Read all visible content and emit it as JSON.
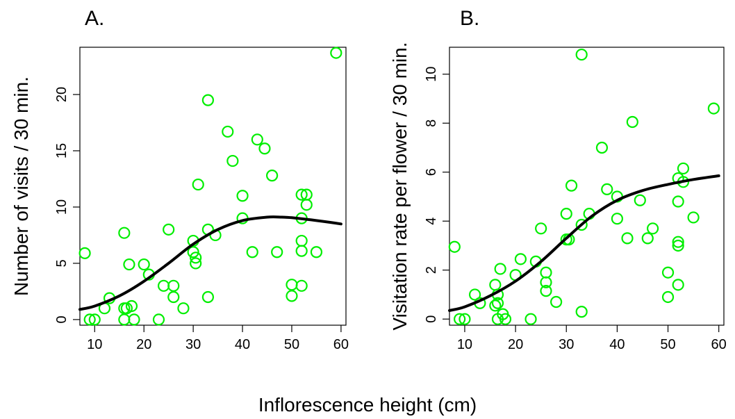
{
  "figure": {
    "shared_xlabel": "Inflorescence height (cm)"
  },
  "chart_data": [
    {
      "type": "scatter",
      "panel_label": "A.",
      "title": "",
      "xlabel": "",
      "ylabel": "Number of visits / 30 min.",
      "xlim": [
        7,
        61
      ],
      "ylim": [
        -0.5,
        24.2
      ],
      "xticks": [
        10,
        20,
        30,
        40,
        50,
        60
      ],
      "yticks": [
        0,
        5,
        10,
        15,
        20
      ],
      "point_color": "#00ee00",
      "curve_color": "#000000",
      "points": [
        [
          8,
          5.9
        ],
        [
          9,
          0
        ],
        [
          10,
          0
        ],
        [
          12,
          1
        ],
        [
          13,
          1.9
        ],
        [
          16,
          7.7
        ],
        [
          16,
          1
        ],
        [
          16.5,
          1
        ],
        [
          16,
          0
        ],
        [
          17,
          4.9
        ],
        [
          17.5,
          1.2
        ],
        [
          18,
          0
        ],
        [
          20,
          4.9
        ],
        [
          21,
          4
        ],
        [
          23,
          0
        ],
        [
          24,
          3
        ],
        [
          25,
          8
        ],
        [
          26,
          3
        ],
        [
          26,
          2
        ],
        [
          28,
          1
        ],
        [
          30,
          7
        ],
        [
          30,
          6
        ],
        [
          30.5,
          5.5
        ],
        [
          30.5,
          5
        ],
        [
          31,
          12
        ],
        [
          33,
          19.5
        ],
        [
          33,
          8
        ],
        [
          33,
          2
        ],
        [
          34.5,
          7.5
        ],
        [
          37,
          16.7
        ],
        [
          38,
          14.1
        ],
        [
          40,
          11
        ],
        [
          40,
          9
        ],
        [
          42,
          6
        ],
        [
          43,
          16
        ],
        [
          44.5,
          15.2
        ],
        [
          46,
          12.8
        ],
        [
          47,
          6
        ],
        [
          50,
          3.1
        ],
        [
          50,
          2.1
        ],
        [
          52,
          11.1
        ],
        [
          52,
          9
        ],
        [
          52,
          7
        ],
        [
          52,
          6.1
        ],
        [
          52,
          3
        ],
        [
          53,
          11.1
        ],
        [
          53,
          10.2
        ],
        [
          55,
          6
        ],
        [
          59,
          23.7
        ]
      ],
      "curve": [
        [
          7,
          0.9
        ],
        [
          10,
          1.2
        ],
        [
          15,
          2.1
        ],
        [
          20,
          3.4
        ],
        [
          25,
          5.0
        ],
        [
          30,
          6.7
        ],
        [
          35,
          8.0
        ],
        [
          40,
          8.8
        ],
        [
          45,
          9.1
        ],
        [
          48,
          9.1
        ],
        [
          50,
          9.05
        ],
        [
          55,
          8.8
        ],
        [
          60,
          8.5
        ]
      ]
    },
    {
      "type": "scatter",
      "panel_label": "B.",
      "title": "",
      "xlabel": "",
      "ylabel": "Visitation rate per flower / 30 min.",
      "xlim": [
        7,
        61
      ],
      "ylim": [
        -0.25,
        11.1
      ],
      "xticks": [
        10,
        20,
        30,
        40,
        50,
        60
      ],
      "yticks": [
        0,
        2,
        4,
        6,
        8,
        10
      ],
      "point_color": "#00ee00",
      "curve_color": "#000000",
      "points": [
        [
          8,
          2.95
        ],
        [
          9,
          0
        ],
        [
          10,
          0
        ],
        [
          12,
          1
        ],
        [
          13,
          0.65
        ],
        [
          16,
          1.4
        ],
        [
          16,
          0.55
        ],
        [
          16.5,
          1
        ],
        [
          16.5,
          0.65
        ],
        [
          16.5,
          0
        ],
        [
          17,
          2.05
        ],
        [
          17.5,
          0.2
        ],
        [
          18,
          0
        ],
        [
          20,
          1.8
        ],
        [
          21,
          2.45
        ],
        [
          23,
          0
        ],
        [
          24,
          2.35
        ],
        [
          25,
          3.7
        ],
        [
          26,
          1.9
        ],
        [
          26,
          1.5
        ],
        [
          26,
          1.15
        ],
        [
          28,
          0.7
        ],
        [
          30,
          4.3
        ],
        [
          30,
          3.25
        ],
        [
          30.5,
          3.25
        ],
        [
          31,
          5.45
        ],
        [
          33,
          10.8
        ],
        [
          33,
          3.85
        ],
        [
          33,
          0.3
        ],
        [
          34.5,
          4.3
        ],
        [
          37,
          7
        ],
        [
          38,
          5.3
        ],
        [
          40,
          5
        ],
        [
          40,
          4.1
        ],
        [
          42,
          3.3
        ],
        [
          43,
          8.05
        ],
        [
          44.5,
          4.85
        ],
        [
          46,
          3.3
        ],
        [
          47,
          3.7
        ],
        [
          50,
          1.9
        ],
        [
          50,
          0.9
        ],
        [
          52,
          5.75
        ],
        [
          52,
          4.8
        ],
        [
          52,
          3.15
        ],
        [
          52,
          3
        ],
        [
          52,
          1.4
        ],
        [
          53,
          6.15
        ],
        [
          53,
          5.6
        ],
        [
          55,
          4.15
        ],
        [
          59,
          8.6
        ]
      ],
      "curve": [
        [
          7,
          0.35
        ],
        [
          10,
          0.5
        ],
        [
          15,
          0.95
        ],
        [
          20,
          1.55
        ],
        [
          25,
          2.35
        ],
        [
          30,
          3.3
        ],
        [
          35,
          4.2
        ],
        [
          40,
          4.85
        ],
        [
          45,
          5.25
        ],
        [
          50,
          5.5
        ],
        [
          55,
          5.7
        ],
        [
          60,
          5.85
        ]
      ]
    }
  ]
}
